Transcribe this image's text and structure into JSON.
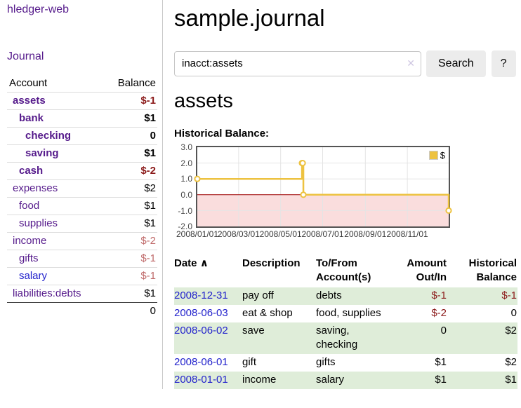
{
  "colors": {
    "link-purple": "#551a8b",
    "link-blue": "#2222cc",
    "negative": "#8b1a1a",
    "negative-muted": "#c06b6b",
    "row-green": "#dfedd9",
    "chart-line": "#edc240",
    "chart-negative-region": "#fadddd",
    "chart-zero-line": "#a00000"
  },
  "app": {
    "brand": "hledger-web",
    "nav_journal": "Journal"
  },
  "sidebar": {
    "table": {
      "headers": {
        "account": "Account",
        "balance": "Balance"
      },
      "rows": [
        {
          "account": "assets",
          "balance": "$-1",
          "indent": 1,
          "emphasis": true,
          "balance_negative": true,
          "muted": false,
          "blue_link": false
        },
        {
          "account": "bank",
          "balance": "$1",
          "indent": 2,
          "emphasis": true,
          "balance_negative": false,
          "muted": false,
          "blue_link": false
        },
        {
          "account": "checking",
          "balance": "0",
          "indent": 3,
          "emphasis": true,
          "balance_negative": false,
          "muted": false,
          "blue_link": false
        },
        {
          "account": "saving",
          "balance": "$1",
          "indent": 3,
          "emphasis": true,
          "balance_negative": false,
          "muted": false,
          "blue_link": false
        },
        {
          "account": "cash",
          "balance": "$-2",
          "indent": 2,
          "emphasis": true,
          "balance_negative": true,
          "muted": false,
          "blue_link": false
        },
        {
          "account": "expenses",
          "balance": "$2",
          "indent": 1,
          "emphasis": false,
          "balance_negative": false,
          "muted": false,
          "blue_link": false
        },
        {
          "account": "food",
          "balance": "$1",
          "indent": 2,
          "emphasis": false,
          "balance_negative": false,
          "muted": false,
          "blue_link": false
        },
        {
          "account": "supplies",
          "balance": "$1",
          "indent": 2,
          "emphasis": false,
          "balance_negative": false,
          "muted": false,
          "blue_link": false
        },
        {
          "account": "income",
          "balance": "$-2",
          "indent": 1,
          "emphasis": false,
          "balance_negative": true,
          "muted": true,
          "blue_link": false
        },
        {
          "account": "gifts",
          "balance": "$-1",
          "indent": 2,
          "emphasis": false,
          "balance_negative": true,
          "muted": true,
          "blue_link": false
        },
        {
          "account": "salary",
          "balance": "$-1",
          "indent": 2,
          "emphasis": false,
          "balance_negative": true,
          "muted": true,
          "blue_link": true
        },
        {
          "account": "liabilities:debts",
          "balance": "$1",
          "indent": 1,
          "emphasis": false,
          "balance_negative": false,
          "muted": false,
          "blue_link": false
        }
      ],
      "total": "0"
    }
  },
  "header": {
    "title": "sample.journal"
  },
  "search": {
    "value": "inacct:assets",
    "clear_icon": "✕",
    "button_label": "Search",
    "help_label": "?"
  },
  "account_page": {
    "title": "assets"
  },
  "chart_data": {
    "type": "line",
    "title": "Historical Balance:",
    "series": [
      {
        "name": "$",
        "color": "#edc240",
        "steps": true,
        "points": [
          {
            "date": "2008-01-01",
            "day": 0,
            "value": 1
          },
          {
            "date": "2008-06-01",
            "day": 152,
            "value": 2
          },
          {
            "date": "2008-06-02",
            "day": 153,
            "value": 2
          },
          {
            "date": "2008-06-03",
            "day": 154,
            "value": 0
          },
          {
            "date": "2008-12-31",
            "day": 365,
            "value": -1
          }
        ]
      }
    ],
    "x_range_days": [
      0,
      365
    ],
    "ylim": [
      -2,
      3
    ],
    "yticks": [
      {
        "value": 3,
        "label": "3.0"
      },
      {
        "value": 2,
        "label": "2.0"
      },
      {
        "value": 1,
        "label": "1.0"
      },
      {
        "value": 0,
        "label": "0.0"
      },
      {
        "value": -1,
        "label": "-1.0"
      },
      {
        "value": -2,
        "label": "-2.0"
      }
    ],
    "xticks": [
      {
        "day": 0,
        "label": "2008/01/01"
      },
      {
        "day": 60,
        "label": "2008/03/01"
      },
      {
        "day": 121,
        "label": "2008/05/01"
      },
      {
        "day": 182,
        "label": "2008/07/01"
      },
      {
        "day": 244,
        "label": "2008/09/01"
      },
      {
        "day": 305,
        "label": "2008/11/01"
      }
    ],
    "grid": true,
    "legend_position": "top-right",
    "negative_region_color": "#fadddd",
    "zero_line_color": "#a00000"
  },
  "register": {
    "headers": {
      "date": "Date",
      "sort_icon": "∧",
      "description": "Description",
      "account": "To/From Account(s)",
      "amount": "Amount Out/In",
      "balance": "Historical Balance"
    },
    "rows": [
      {
        "date": "2008-12-31",
        "description": "pay off",
        "account": "debts",
        "amount": "$-1",
        "balance": "$-1",
        "amount_negative": true,
        "balance_negative": true
      },
      {
        "date": "2008-06-03",
        "description": "eat & shop",
        "account": "food, supplies",
        "amount": "$-2",
        "balance": "0",
        "amount_negative": true,
        "balance_negative": false
      },
      {
        "date": "2008-06-02",
        "description": "save",
        "account": "saving, checking",
        "amount": "0",
        "balance": "$2",
        "amount_negative": false,
        "balance_negative": false
      },
      {
        "date": "2008-06-01",
        "description": "gift",
        "account": "gifts",
        "amount": "$1",
        "balance": "$2",
        "amount_negative": false,
        "balance_negative": false
      },
      {
        "date": "2008-01-01",
        "description": "income",
        "account": "salary",
        "amount": "$1",
        "balance": "$1",
        "amount_negative": false,
        "balance_negative": false
      }
    ]
  }
}
